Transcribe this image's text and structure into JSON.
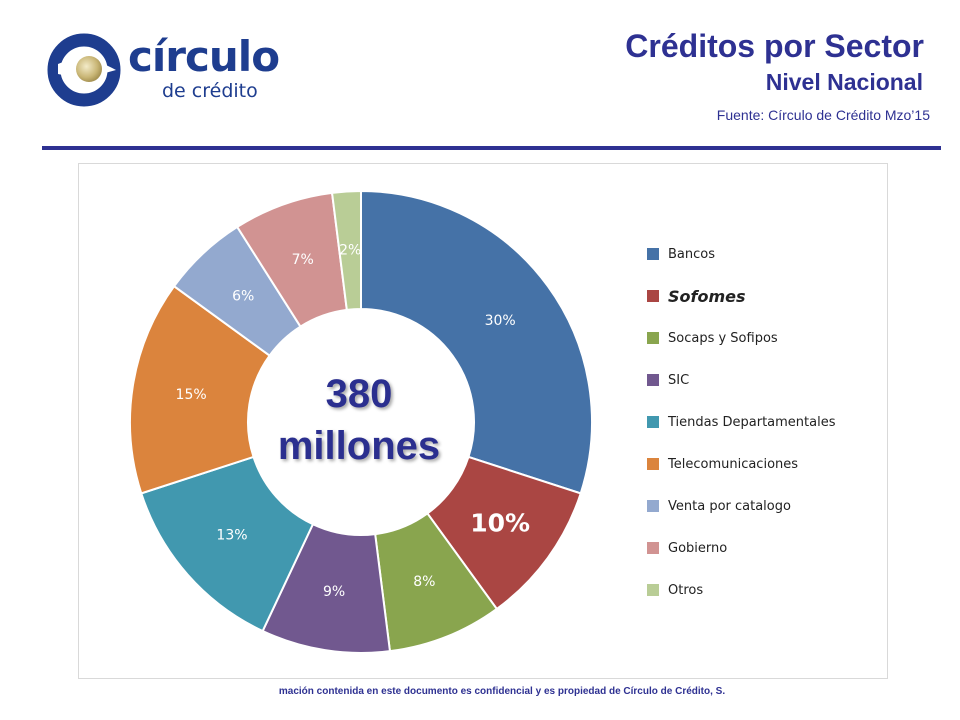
{
  "header": {
    "title": "Créditos por Sector",
    "subtitle": "Nivel Nacional",
    "source": "Fuente: Círculo de Crédito Mzo’15"
  },
  "logo": {
    "word": "círculo",
    "sub": "de crédito"
  },
  "center": {
    "line1": "380",
    "line2": "millones"
  },
  "footer": {
    "text": "mación contenida en este documento es confidencial y  es propiedad de Círculo de Crédito, S."
  },
  "colors": {
    "accent": "#2e3192"
  },
  "chart_data": {
    "type": "pie",
    "donut": true,
    "categories": [
      "Bancos",
      "Sofomes",
      "Socaps y Sofipos",
      "SIC",
      "Tiendas Departamentales",
      "Telecomunicaciones",
      "Venta por catalogo",
      "Gobierno",
      "Otros"
    ],
    "values": [
      30,
      10,
      8,
      9,
      13,
      15,
      6,
      7,
      2
    ],
    "labels": [
      "30%",
      "10%",
      "8%",
      "9%",
      "13%",
      "15%",
      "6%",
      "7%",
      "2%"
    ],
    "colors": [
      "#4572a7",
      "#aa4643",
      "#89a54e",
      "#71588f",
      "#4198af",
      "#db843d",
      "#93a9cf",
      "#d19392",
      "#b9cd96"
    ],
    "label_colors": [
      "#ffffff",
      "#ffffff",
      "#ffffff",
      "#ffffff",
      "#ffffff",
      "#ffffff",
      "#ffffff",
      "#ffffff",
      "#ffffff"
    ],
    "highlight": "Sofomes",
    "legend_position": "right"
  }
}
